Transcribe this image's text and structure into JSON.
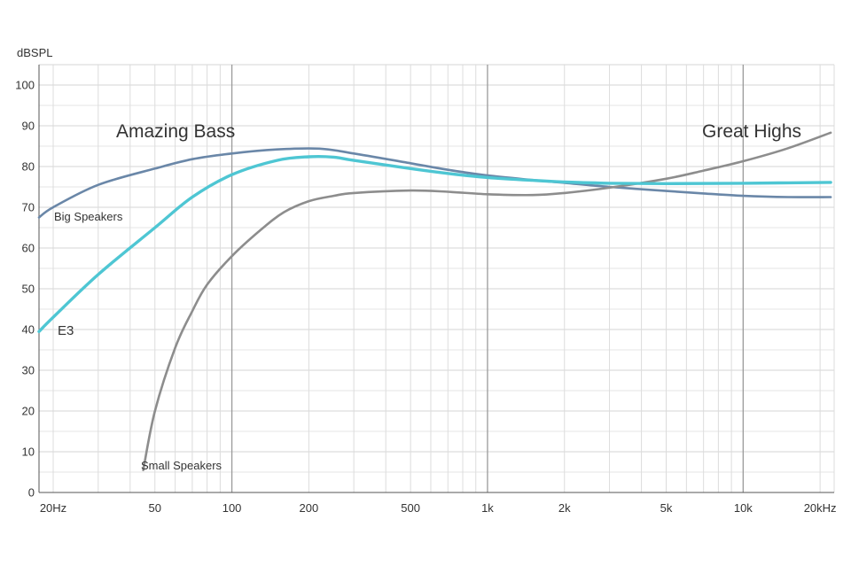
{
  "chart_data": {
    "type": "line",
    "title": "",
    "ylabel": "dBSPL",
    "xlabel": "",
    "x_scale": "log",
    "xlim": [
      17.6,
      22700
    ],
    "ylim": [
      0,
      105
    ],
    "grid": true,
    "yticks": [
      0,
      10,
      20,
      30,
      40,
      50,
      60,
      70,
      80,
      90,
      100
    ],
    "xtick_labels": [
      {
        "value": 20,
        "label": "20Hz"
      },
      {
        "value": 50,
        "label": "50"
      },
      {
        "value": 100,
        "label": "100"
      },
      {
        "value": 200,
        "label": "200"
      },
      {
        "value": 500,
        "label": "500"
      },
      {
        "value": 1000,
        "label": "1k"
      },
      {
        "value": 2000,
        "label": "2k"
      },
      {
        "value": 5000,
        "label": "5k"
      },
      {
        "value": 10000,
        "label": "10k"
      },
      {
        "value": 20000,
        "label": "20kHz"
      }
    ],
    "annotations": {
      "left": "Amazing Bass",
      "right": "Great Highs"
    },
    "series": [
      {
        "name": "Big Speakers",
        "color": "#6a87a8",
        "points": [
          [
            17.6,
            67.5
          ],
          [
            20,
            70
          ],
          [
            30,
            75.5
          ],
          [
            50,
            79.5
          ],
          [
            70,
            81.8
          ],
          [
            100,
            83.2
          ],
          [
            150,
            84.2
          ],
          [
            220,
            84.4
          ],
          [
            300,
            83.2
          ],
          [
            500,
            80.8
          ],
          [
            700,
            79.2
          ],
          [
            1000,
            77.8
          ],
          [
            1500,
            76.7
          ],
          [
            2000,
            76
          ],
          [
            3000,
            75
          ],
          [
            5000,
            74
          ],
          [
            7000,
            73.4
          ],
          [
            10000,
            72.8
          ],
          [
            15000,
            72.5
          ],
          [
            22000,
            72.5
          ]
        ]
      },
      {
        "name": "E3",
        "color": "#4ec6d3",
        "points": [
          [
            17.6,
            39.5
          ],
          [
            20,
            43
          ],
          [
            30,
            53.5
          ],
          [
            50,
            65
          ],
          [
            70,
            72.5
          ],
          [
            100,
            78
          ],
          [
            150,
            81.5
          ],
          [
            200,
            82.4
          ],
          [
            250,
            82.3
          ],
          [
            300,
            81.5
          ],
          [
            500,
            79.5
          ],
          [
            700,
            78.3
          ],
          [
            1000,
            77.3
          ],
          [
            1500,
            76.6
          ],
          [
            2000,
            76.2
          ],
          [
            3000,
            75.9
          ],
          [
            5000,
            75.8
          ],
          [
            10000,
            75.9
          ],
          [
            22000,
            76.1
          ]
        ]
      },
      {
        "name": "Small Speakers",
        "color": "#8d8d8d",
        "points": [
          [
            45,
            5.5
          ],
          [
            50,
            20
          ],
          [
            60,
            35.5
          ],
          [
            70,
            44.5
          ],
          [
            80,
            51
          ],
          [
            100,
            58
          ],
          [
            130,
            64.5
          ],
          [
            160,
            68.8
          ],
          [
            200,
            71.5
          ],
          [
            250,
            72.8
          ],
          [
            300,
            73.5
          ],
          [
            500,
            74.1
          ],
          [
            700,
            73.8
          ],
          [
            1000,
            73.2
          ],
          [
            1500,
            73
          ],
          [
            2000,
            73.5
          ],
          [
            3000,
            74.8
          ],
          [
            5000,
            77
          ],
          [
            7000,
            79
          ],
          [
            10000,
            81.3
          ],
          [
            15000,
            84.5
          ],
          [
            22000,
            88.3
          ]
        ]
      }
    ]
  }
}
